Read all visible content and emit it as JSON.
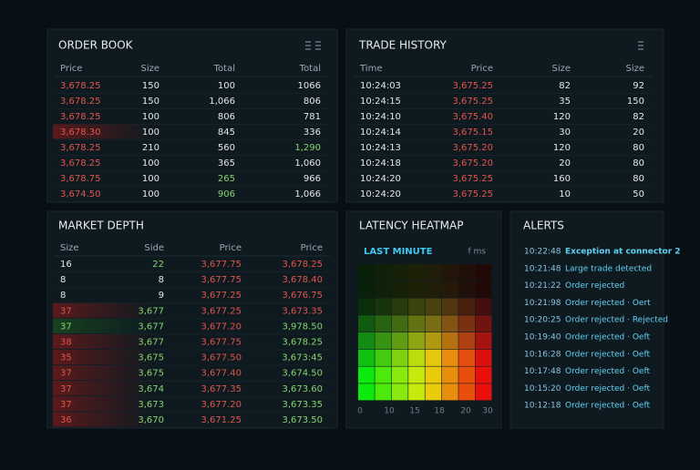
{
  "order_book": {
    "title": "ORDER BOOK",
    "headers": [
      "Price",
      "Size",
      "Total",
      "Total"
    ],
    "rows": [
      [
        "3,678.25",
        "150",
        "100",
        "1066"
      ],
      [
        "3,678.25",
        "150",
        "1,066",
        "806"
      ],
      [
        "3,678.25",
        "100",
        "806",
        "781"
      ],
      [
        "3,678.30",
        "100",
        "845",
        "336"
      ],
      [
        "3,678.25",
        "210",
        "560",
        "1,290"
      ],
      [
        "3,678.25",
        "100",
        "365",
        "1,060"
      ],
      [
        "3,678.75",
        "100",
        "265",
        "966"
      ],
      [
        "3,674.50",
        "100",
        "906",
        "1,066"
      ]
    ]
  },
  "trade_history": {
    "title": "TRADE HISTORY",
    "headers": [
      "Time",
      "Price",
      "Size",
      "Size"
    ],
    "rows": [
      [
        "10:24:03",
        "3,675.25",
        "82",
        "92"
      ],
      [
        "10:24:15",
        "3,675.25",
        "35",
        "150"
      ],
      [
        "10:24:10",
        "3,675.40",
        "120",
        "82"
      ],
      [
        "10:24:14",
        "3,675.15",
        "30",
        "20"
      ],
      [
        "10:24:13",
        "3,675.20",
        "120",
        "80"
      ],
      [
        "10:24:18",
        "3,675.20",
        "20",
        "80"
      ],
      [
        "10:24:20",
        "3,675.25",
        "160",
        "80"
      ],
      [
        "10:24:20",
        "3,675.25",
        "10",
        "50"
      ]
    ]
  },
  "market_depth": {
    "title": "MARKET DEPTH",
    "headers": [
      "Size",
      "Side",
      "Price",
      "Price"
    ],
    "rows": [
      [
        "16",
        "22",
        "3,677.75",
        "3,678.25"
      ],
      [
        "8",
        "8",
        "3,677.75",
        "3,678.40"
      ],
      [
        "8",
        "9",
        "3,677.25",
        "3,676.75"
      ],
      [
        "37",
        "3,677",
        "3,677.25",
        "3,673.35"
      ],
      [
        "37",
        "3,677",
        "3,677.20",
        "3,978.50"
      ],
      [
        "38",
        "3,677",
        "3,677.75",
        "3,678.25"
      ],
      [
        "35",
        "3,675",
        "3,677.50",
        "3,673:45"
      ],
      [
        "37",
        "3,675",
        "3,677.40",
        "3,674.50"
      ],
      [
        "37",
        "3,674",
        "3,677.35",
        "3,673.60"
      ],
      [
        "37",
        "3,673",
        "3,677.20",
        "3,673.35"
      ],
      [
        "36",
        "3,670",
        "3,671.25",
        "3,673.50"
      ]
    ]
  },
  "latency_heatmap": {
    "title": "LATENCY HEATMAP",
    "subtitle": "LAST MINUTE",
    "unit": "f ms",
    "xticks": [
      "0",
      "10",
      "15",
      "18",
      "20",
      "30"
    ]
  },
  "alerts": {
    "title": "ALERTS",
    "rows": [
      [
        "10:22:48",
        "Exception at connector 2"
      ],
      [
        "10:21:48",
        "Large trade detected"
      ],
      [
        "10:21:22",
        "Order rejected"
      ],
      [
        "10:21:98",
        "Order rejected · Oert"
      ],
      [
        "10:20:25",
        "Order rejected · Rejected"
      ],
      [
        "10:19:40",
        "Order rejected · Oeft"
      ],
      [
        "10:16:28",
        "Order rejected · Oeft"
      ],
      [
        "10:17:48",
        "Order rejected · Oeft"
      ],
      [
        "10:15:20",
        "Order rejected · Oeft"
      ],
      [
        "10:12:18",
        "Order rejected · Oeft"
      ]
    ]
  }
}
